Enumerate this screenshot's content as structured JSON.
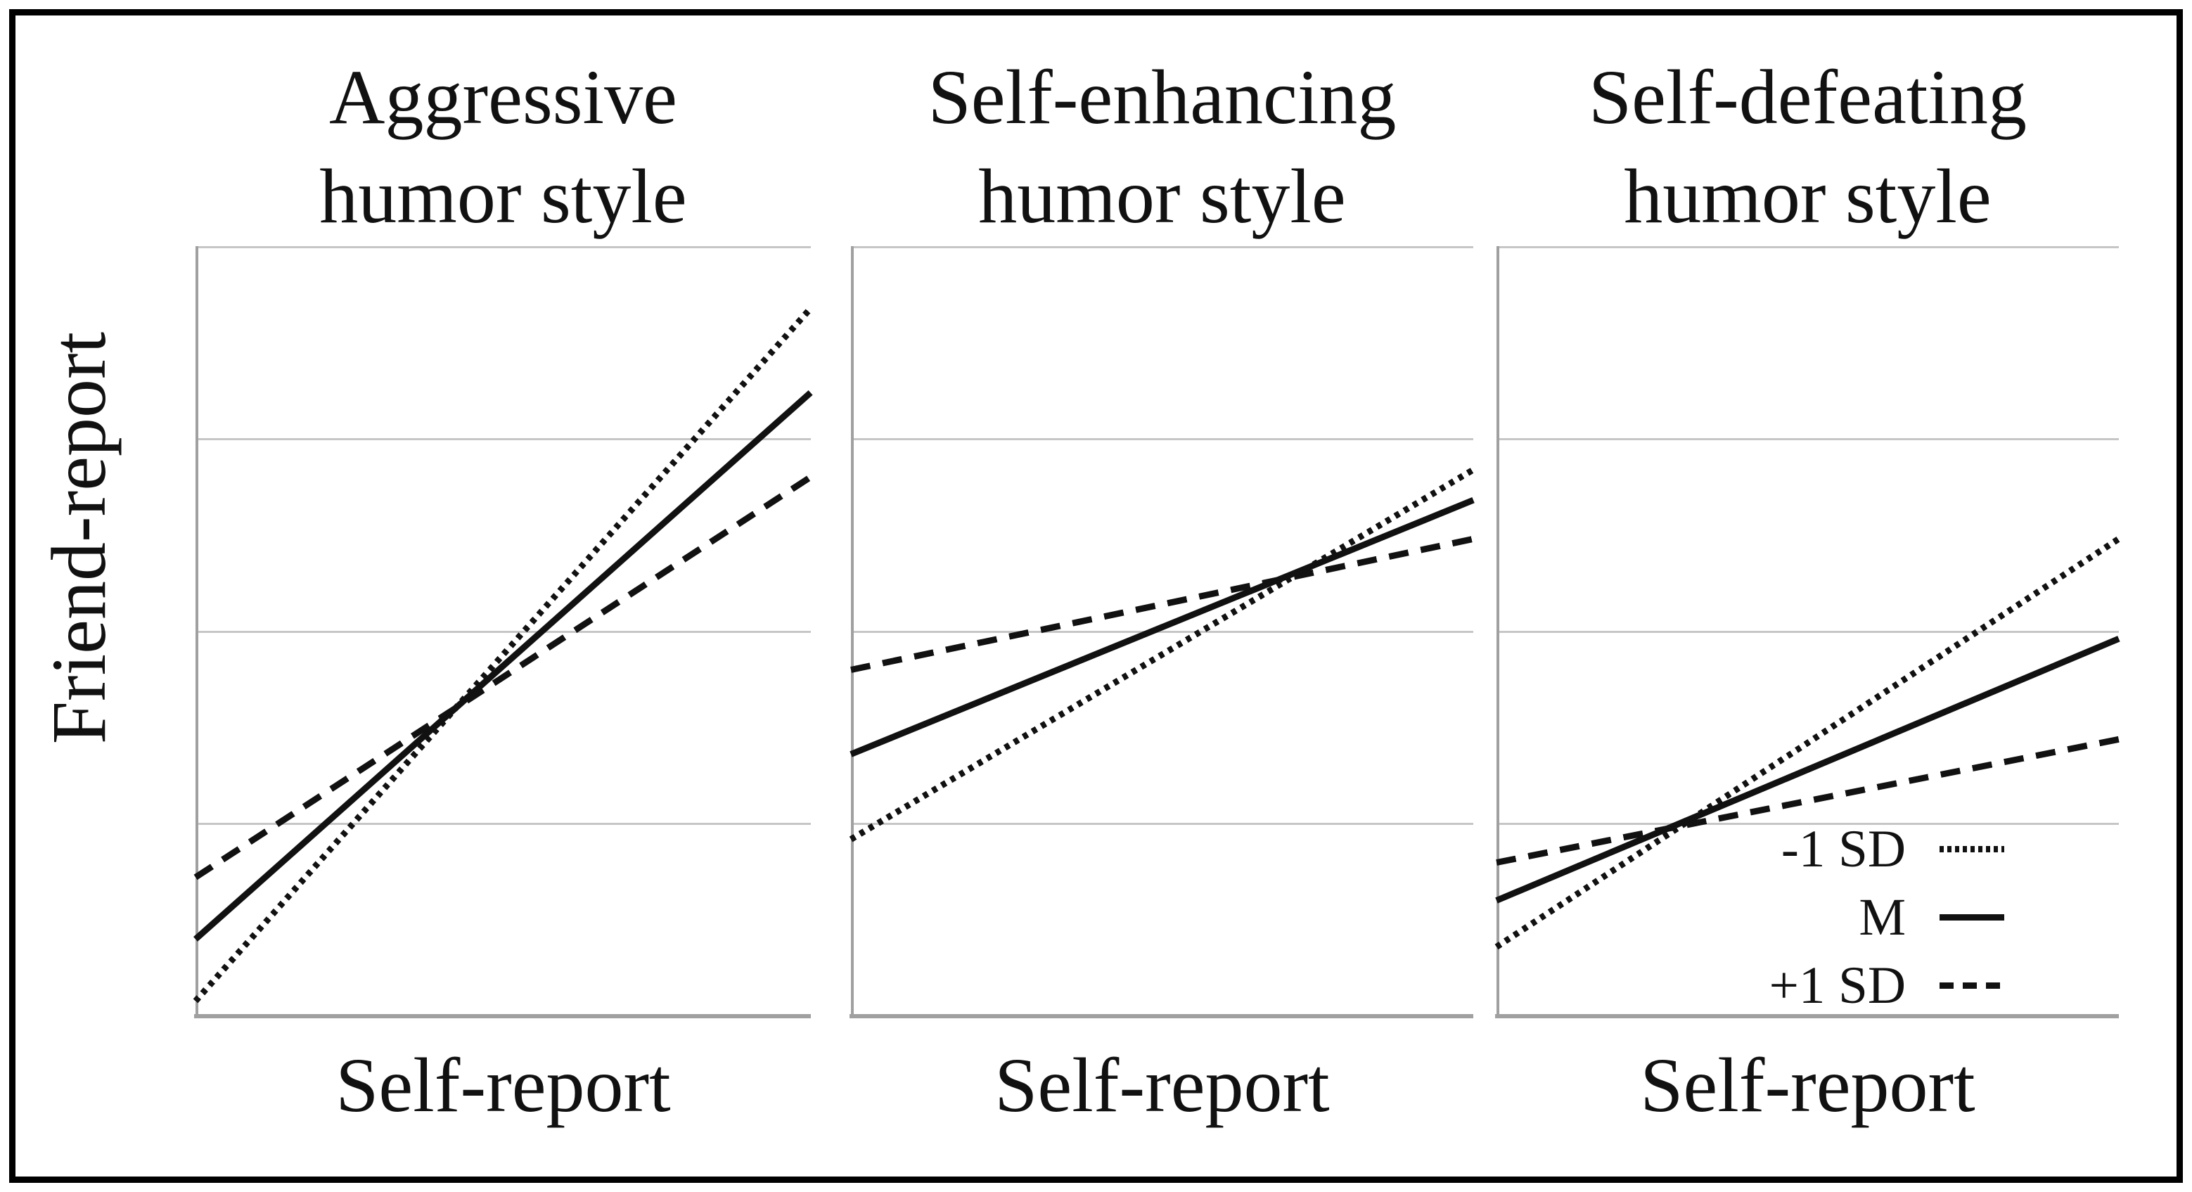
{
  "figure": {
    "y_axis_label": "Friend-report",
    "x_axis_label": "Self-report",
    "colors": {
      "line": "#111111",
      "grid": "#c6c6c6",
      "axis": "#a0a0a0",
      "border": "#000000",
      "background": "#ffffff"
    }
  },
  "panels": [
    {
      "title_line1": "Aggressive",
      "title_line2": "humor style",
      "x_label": "Self-report"
    },
    {
      "title_line1": "Self-enhancing",
      "title_line2": "humor style",
      "x_label": "Self-report"
    },
    {
      "title_line1": "Self-defeating",
      "title_line2": "humor style",
      "x_label": "Self-report"
    }
  ],
  "legend": {
    "items": [
      {
        "label": "-1 SD",
        "style": "dotted"
      },
      {
        "label": "M",
        "style": "solid"
      },
      {
        "label": "+1 SD",
        "style": "dashed"
      }
    ]
  },
  "chart_data": [
    {
      "type": "line",
      "title": "Aggressive humor style",
      "xlabel": "Self-report",
      "ylabel": "Friend-report",
      "x_norm_range": [
        0,
        1
      ],
      "y_norm_range": [
        0,
        1
      ],
      "grid": "4 horizontal gridlines at quarters, no vertical grid, no tick labels",
      "series": [
        {
          "name": "-1 SD",
          "style": "dotted",
          "y_start": 0.02,
          "y_end": 0.92
        },
        {
          "name": "M",
          "style": "solid",
          "y_start": 0.1,
          "y_end": 0.81
        },
        {
          "name": "+1 SD",
          "style": "dashed",
          "y_start": 0.18,
          "y_end": 0.7
        }
      ]
    },
    {
      "type": "line",
      "title": "Self-enhancing humor style",
      "xlabel": "Self-report",
      "ylabel": "Friend-report",
      "x_norm_range": [
        0,
        1
      ],
      "y_norm_range": [
        0,
        1
      ],
      "grid": "4 horizontal gridlines at quarters, no vertical grid, no tick labels",
      "series": [
        {
          "name": "-1 SD",
          "style": "dotted",
          "y_start": 0.23,
          "y_end": 0.71
        },
        {
          "name": "M",
          "style": "solid",
          "y_start": 0.34,
          "y_end": 0.67
        },
        {
          "name": "+1 SD",
          "style": "dashed",
          "y_start": 0.45,
          "y_end": 0.62
        }
      ]
    },
    {
      "type": "line",
      "title": "Self-defeating humor style",
      "xlabel": "Self-report",
      "ylabel": "Friend-report",
      "x_norm_range": [
        0,
        1
      ],
      "y_norm_range": [
        0,
        1
      ],
      "grid": "4 horizontal gridlines at quarters, no vertical grid, no tick labels",
      "series": [
        {
          "name": "-1 SD",
          "style": "dotted",
          "y_start": 0.09,
          "y_end": 0.62
        },
        {
          "name": "M",
          "style": "solid",
          "y_start": 0.15,
          "y_end": 0.49
        },
        {
          "name": "+1 SD",
          "style": "dashed",
          "y_start": 0.2,
          "y_end": 0.36
        }
      ]
    }
  ]
}
